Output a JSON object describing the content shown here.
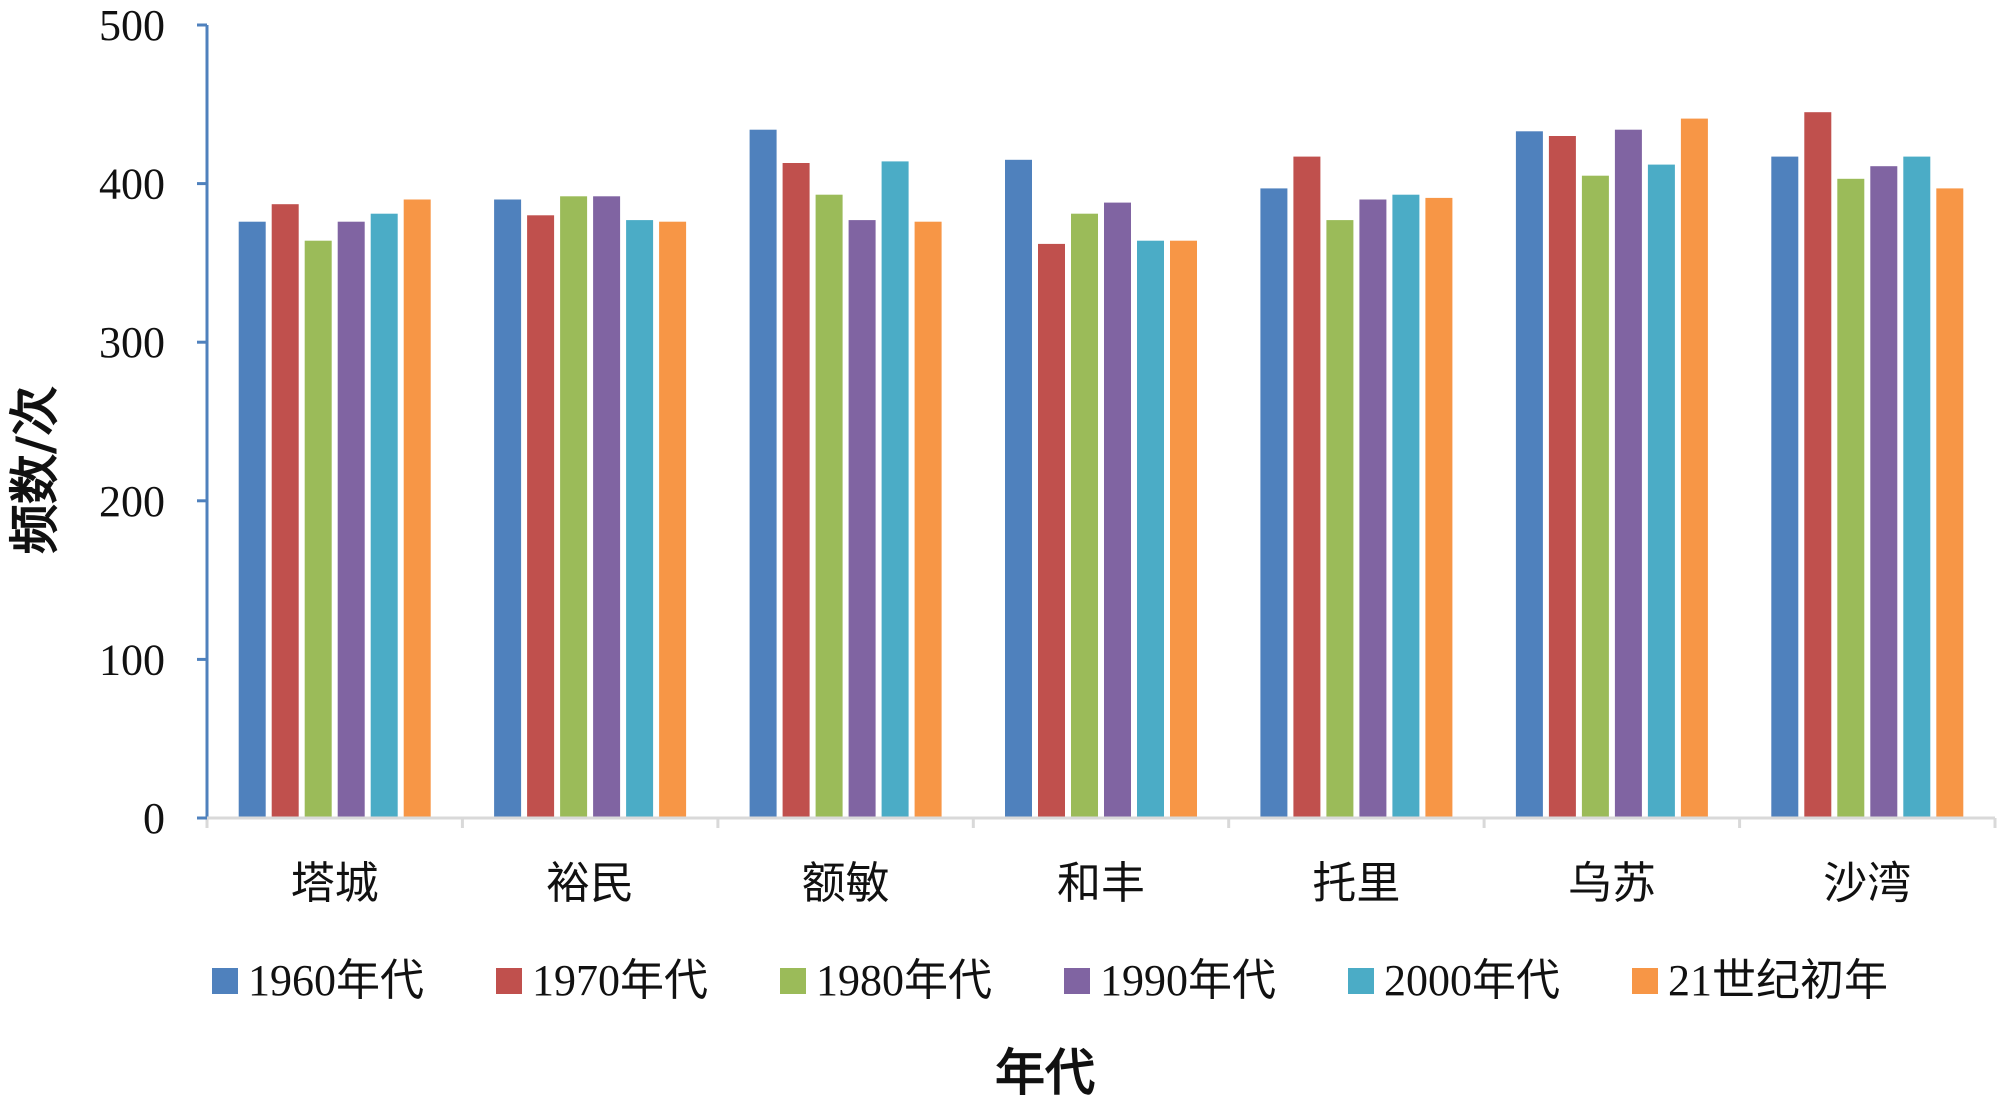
{
  "chart_data": {
    "type": "bar",
    "title": "",
    "xlabel": "年代",
    "ylabel": "频数/次",
    "ylim": [
      0,
      500
    ],
    "yticks": [
      0,
      100,
      200,
      300,
      400,
      500
    ],
    "grid": false,
    "legend_position": "bottom",
    "categories": [
      "塔城",
      "裕民",
      "额敏",
      "和丰",
      "托里",
      "乌苏",
      "沙湾"
    ],
    "series": [
      {
        "name": "1960年代",
        "color": "#4F81BD",
        "values": [
          376,
          390,
          434,
          415,
          397,
          433,
          417
        ]
      },
      {
        "name": "1970年代",
        "color": "#C0504D",
        "values": [
          387,
          380,
          413,
          362,
          417,
          430,
          445
        ]
      },
      {
        "name": "1980年代",
        "color": "#9BBB59",
        "values": [
          364,
          392,
          393,
          381,
          377,
          405,
          403
        ]
      },
      {
        "name": "1990年代",
        "color": "#8064A2",
        "values": [
          376,
          392,
          377,
          388,
          390,
          434,
          411
        ]
      },
      {
        "name": "2000年代",
        "color": "#4BACC6",
        "values": [
          381,
          377,
          414,
          364,
          393,
          412,
          417
        ]
      },
      {
        "name": "21世纪初年",
        "color": "#F79646",
        "values": [
          390,
          376,
          376,
          364,
          391,
          441,
          397
        ]
      }
    ],
    "axis_color": "#4F81BD",
    "baseline_color": "#D9D9D9"
  }
}
